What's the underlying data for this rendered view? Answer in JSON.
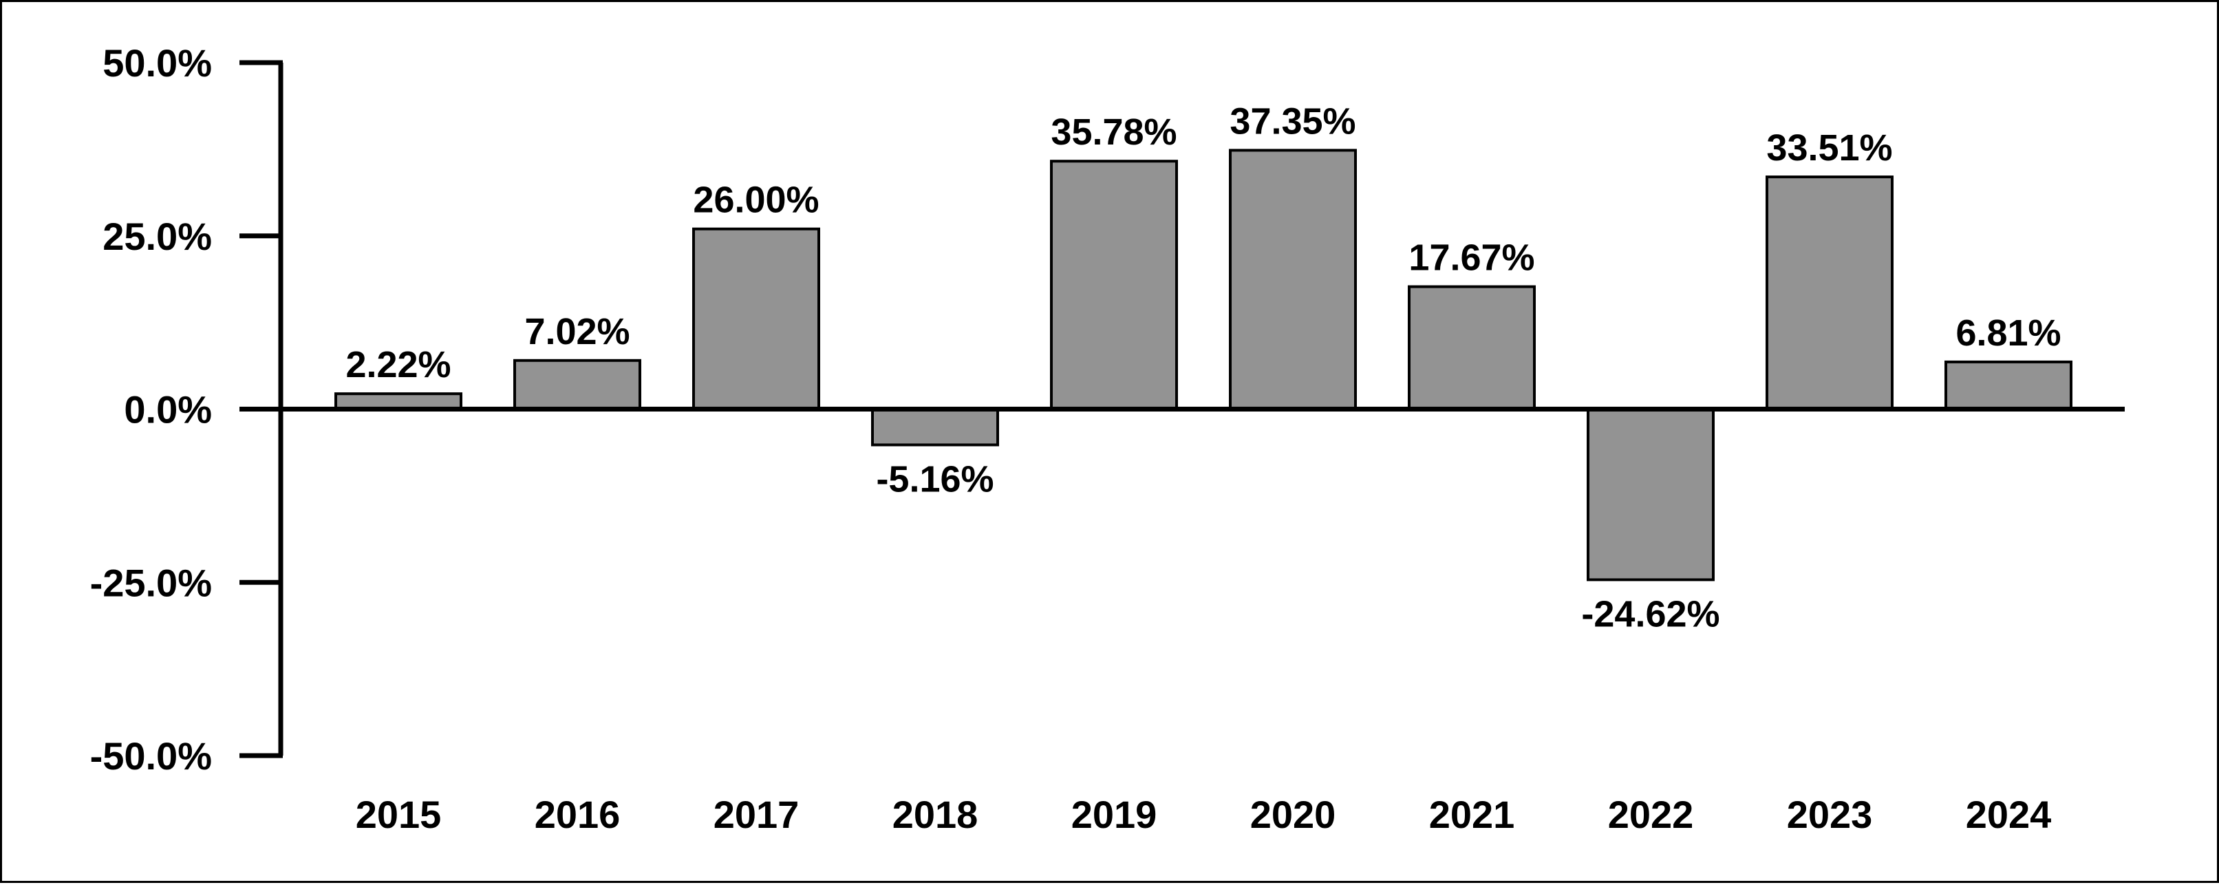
{
  "chart_data": {
    "type": "bar",
    "title": "",
    "xlabel": "",
    "ylabel": "",
    "categories": [
      "2015",
      "2016",
      "2017",
      "2018",
      "2019",
      "2020",
      "2021",
      "2022",
      "2023",
      "2024"
    ],
    "values": [
      2.22,
      7.02,
      26.0,
      -5.16,
      35.78,
      37.35,
      17.67,
      -24.62,
      33.51,
      6.81
    ],
    "data_labels": [
      "2.22%",
      "7.02%",
      "26.00%",
      "-5.16%",
      "35.78%",
      "37.35%",
      "17.67%",
      "-24.62%",
      "33.51%",
      "6.81%"
    ],
    "ylim": [
      -50,
      50
    ],
    "yticks": [
      50,
      25,
      0,
      -25,
      -50
    ],
    "ytick_labels": [
      "50.0%",
      "25.0%",
      "0.0%",
      "-25.0%",
      "-50.0%"
    ],
    "grid": false,
    "legend": "none",
    "bar_color": "#939393",
    "bar_edge_color": "#000000"
  }
}
